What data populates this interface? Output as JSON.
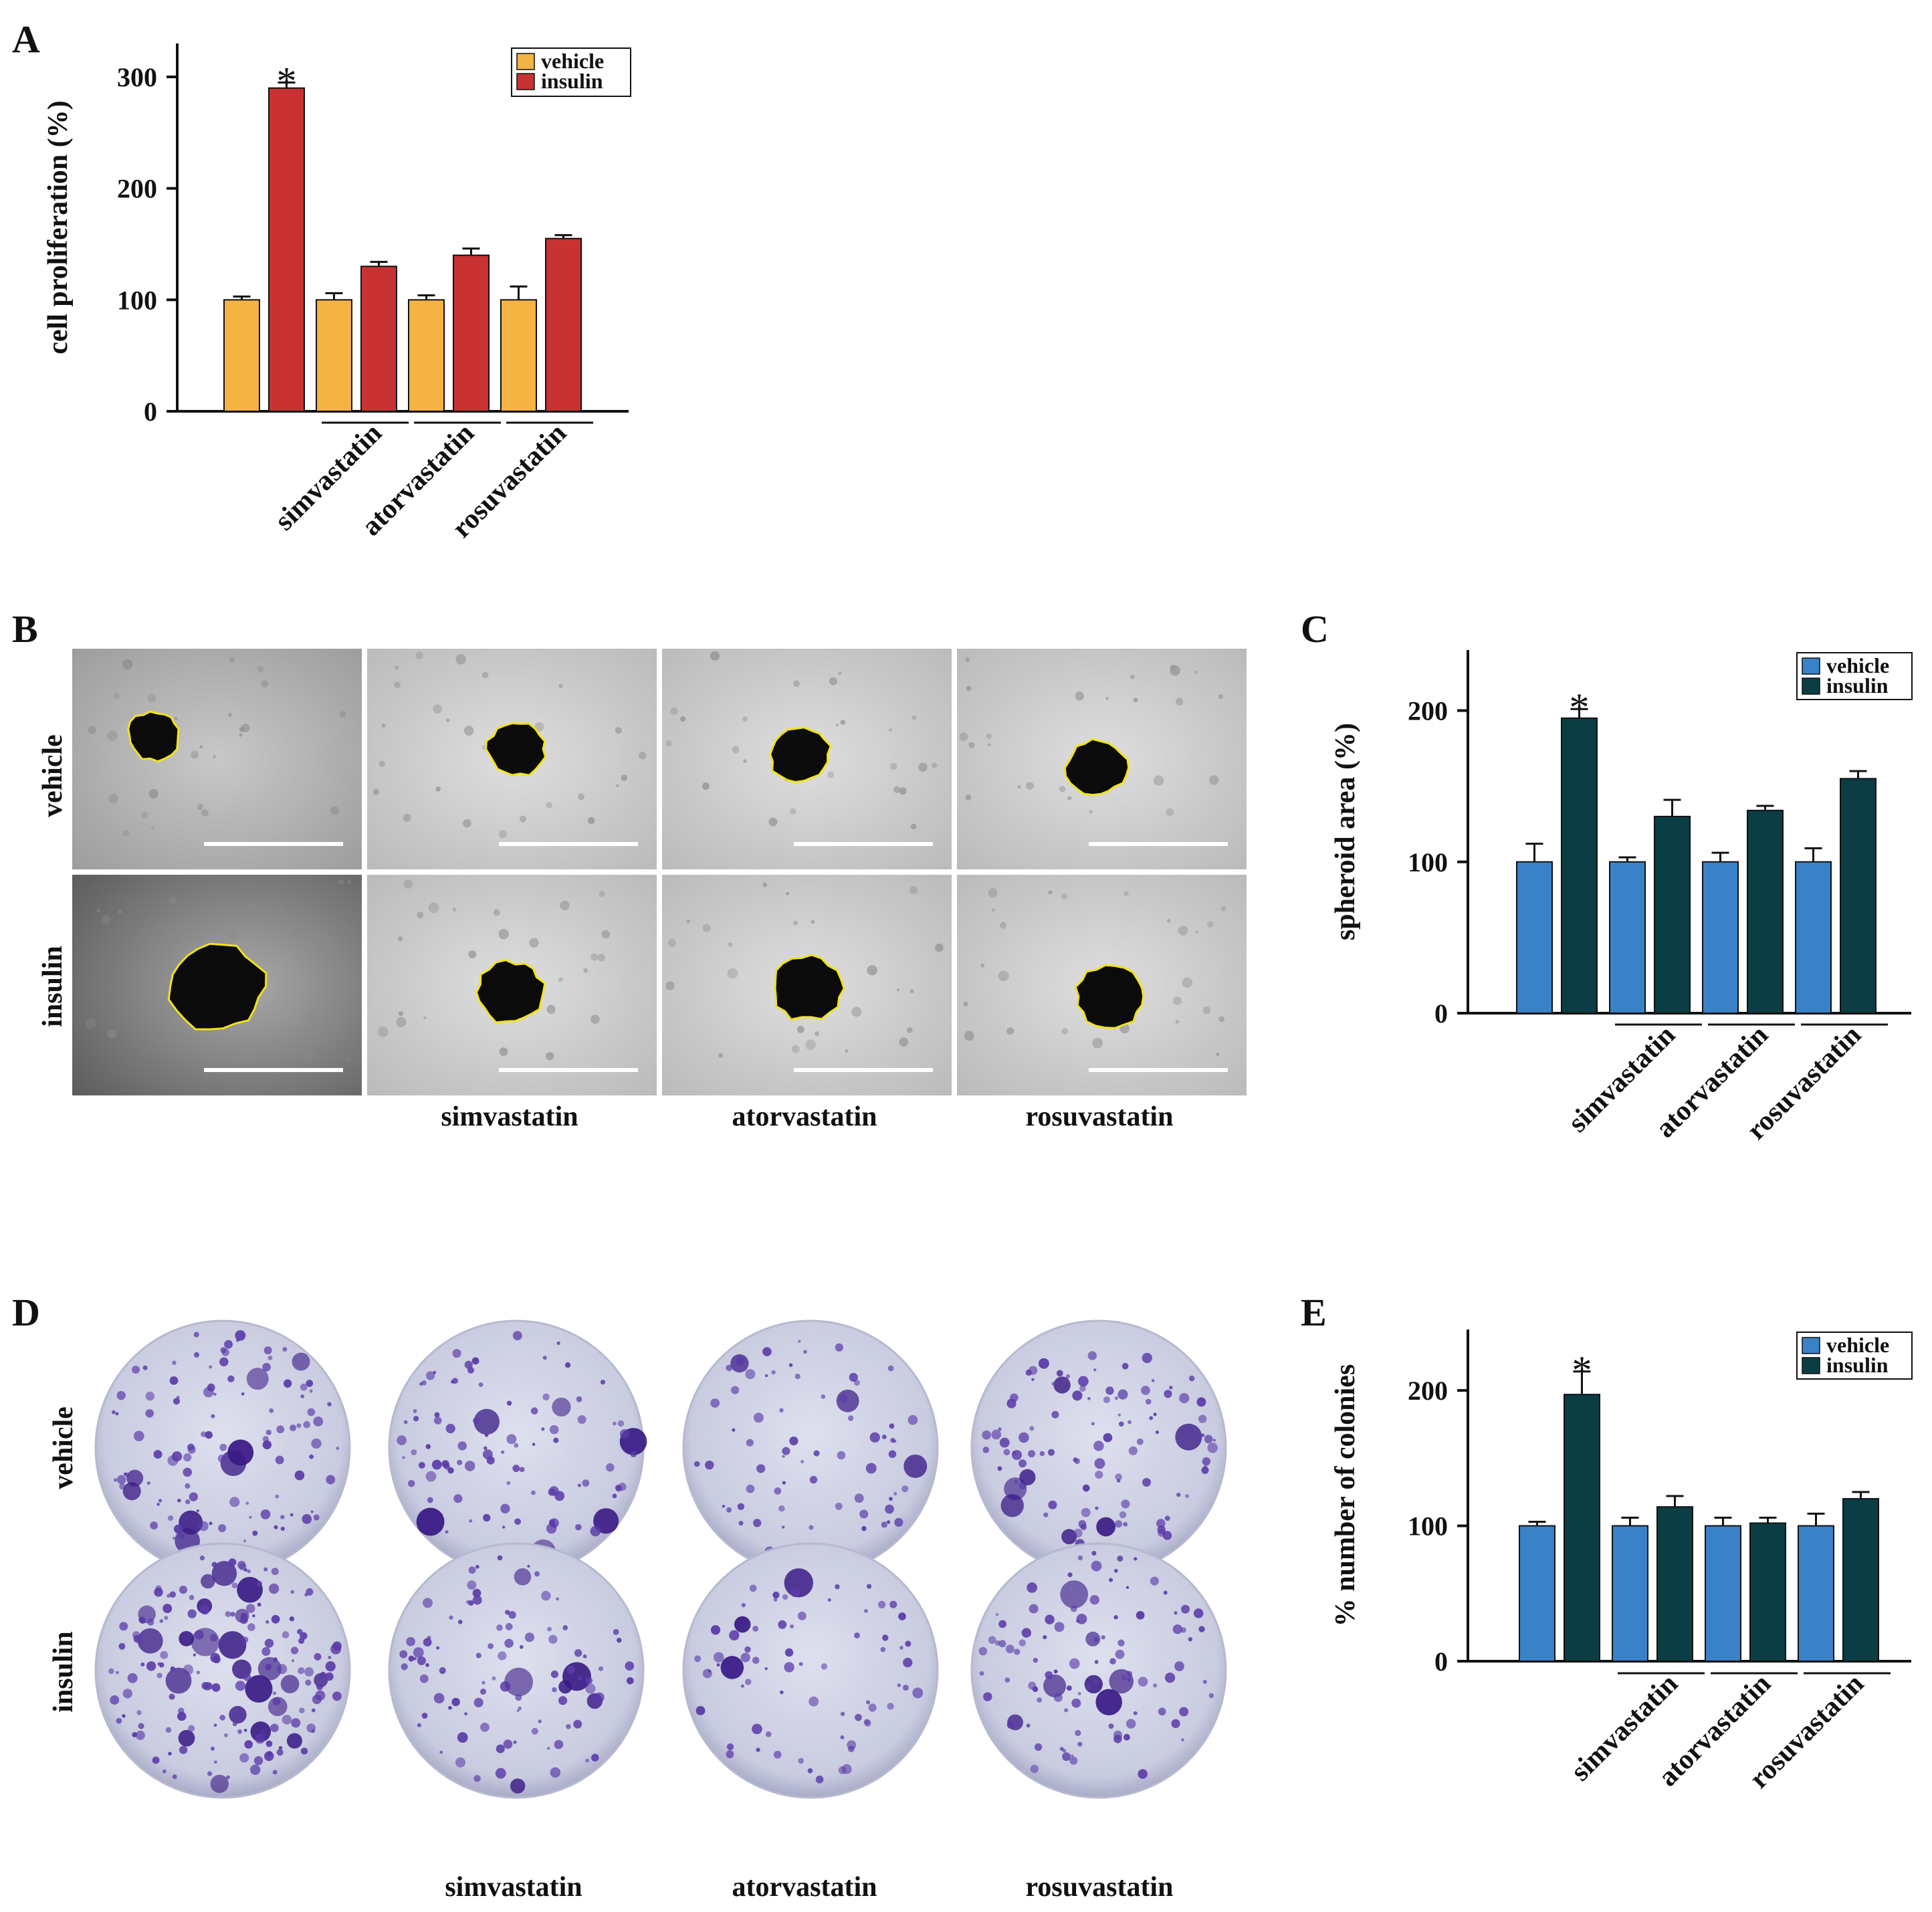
{
  "panels": {
    "a": "A",
    "b": "B",
    "c": "C",
    "d": "D",
    "e": "E"
  },
  "row_labels": [
    "vehicle",
    "insulin"
  ],
  "column_labels": [
    "simvastatin",
    "atorvastatin",
    "rosuvastatin"
  ],
  "chart_data": [
    {
      "id": "A",
      "type": "bar",
      "ylabel": "cell proliferation (%)",
      "ylim": [
        0,
        330
      ],
      "yticks": [
        "0",
        "100",
        "200",
        "300"
      ],
      "groups": [
        "",
        "simvastatin",
        "atorvastatin",
        "rosuvastatin"
      ],
      "legend": "top-right",
      "series": [
        {
          "name": "vehicle",
          "color": "#f4b342",
          "values": [
            100,
            100,
            100,
            100
          ],
          "errors": [
            3,
            6,
            4,
            12
          ]
        },
        {
          "name": "insulin",
          "color": "#c93232",
          "values": [
            290,
            130,
            140,
            155
          ],
          "errors": [
            5,
            4,
            6,
            3
          ]
        }
      ],
      "significance": "*"
    },
    {
      "id": "C",
      "type": "bar",
      "ylabel": "spheroid area (%)",
      "ylim": [
        0,
        240
      ],
      "yticks": [
        "0",
        "100",
        "200"
      ],
      "groups": [
        "",
        "simvastatin",
        "atorvastatin",
        "rosuvastatin"
      ],
      "legend": "top-right",
      "series": [
        {
          "name": "vehicle",
          "color": "#3a82c8",
          "values": [
            100,
            100,
            100,
            100
          ],
          "errors": [
            12,
            3,
            6,
            9
          ]
        },
        {
          "name": "insulin",
          "color": "#0b3d45",
          "values": [
            195,
            130,
            134,
            155
          ],
          "errors": [
            6,
            11,
            3,
            5
          ]
        }
      ],
      "significance": "*"
    },
    {
      "id": "E",
      "type": "bar",
      "ylabel": "% number of colonies",
      "ylim": [
        0,
        245
      ],
      "yticks": [
        "0",
        "100",
        "200"
      ],
      "groups": [
        "",
        "simvastatin",
        "atorvastatin",
        "rosuvastatin"
      ],
      "legend": "top-right",
      "series": [
        {
          "name": "vehicle",
          "color": "#3a82c8",
          "values": [
            100,
            100,
            100,
            100
          ],
          "errors": [
            3,
            6,
            6,
            9
          ]
        },
        {
          "name": "insulin",
          "color": "#0b3d45",
          "values": [
            197,
            114,
            102,
            120
          ],
          "errors": [
            17,
            8,
            4,
            5
          ]
        }
      ],
      "significance": "*"
    }
  ]
}
